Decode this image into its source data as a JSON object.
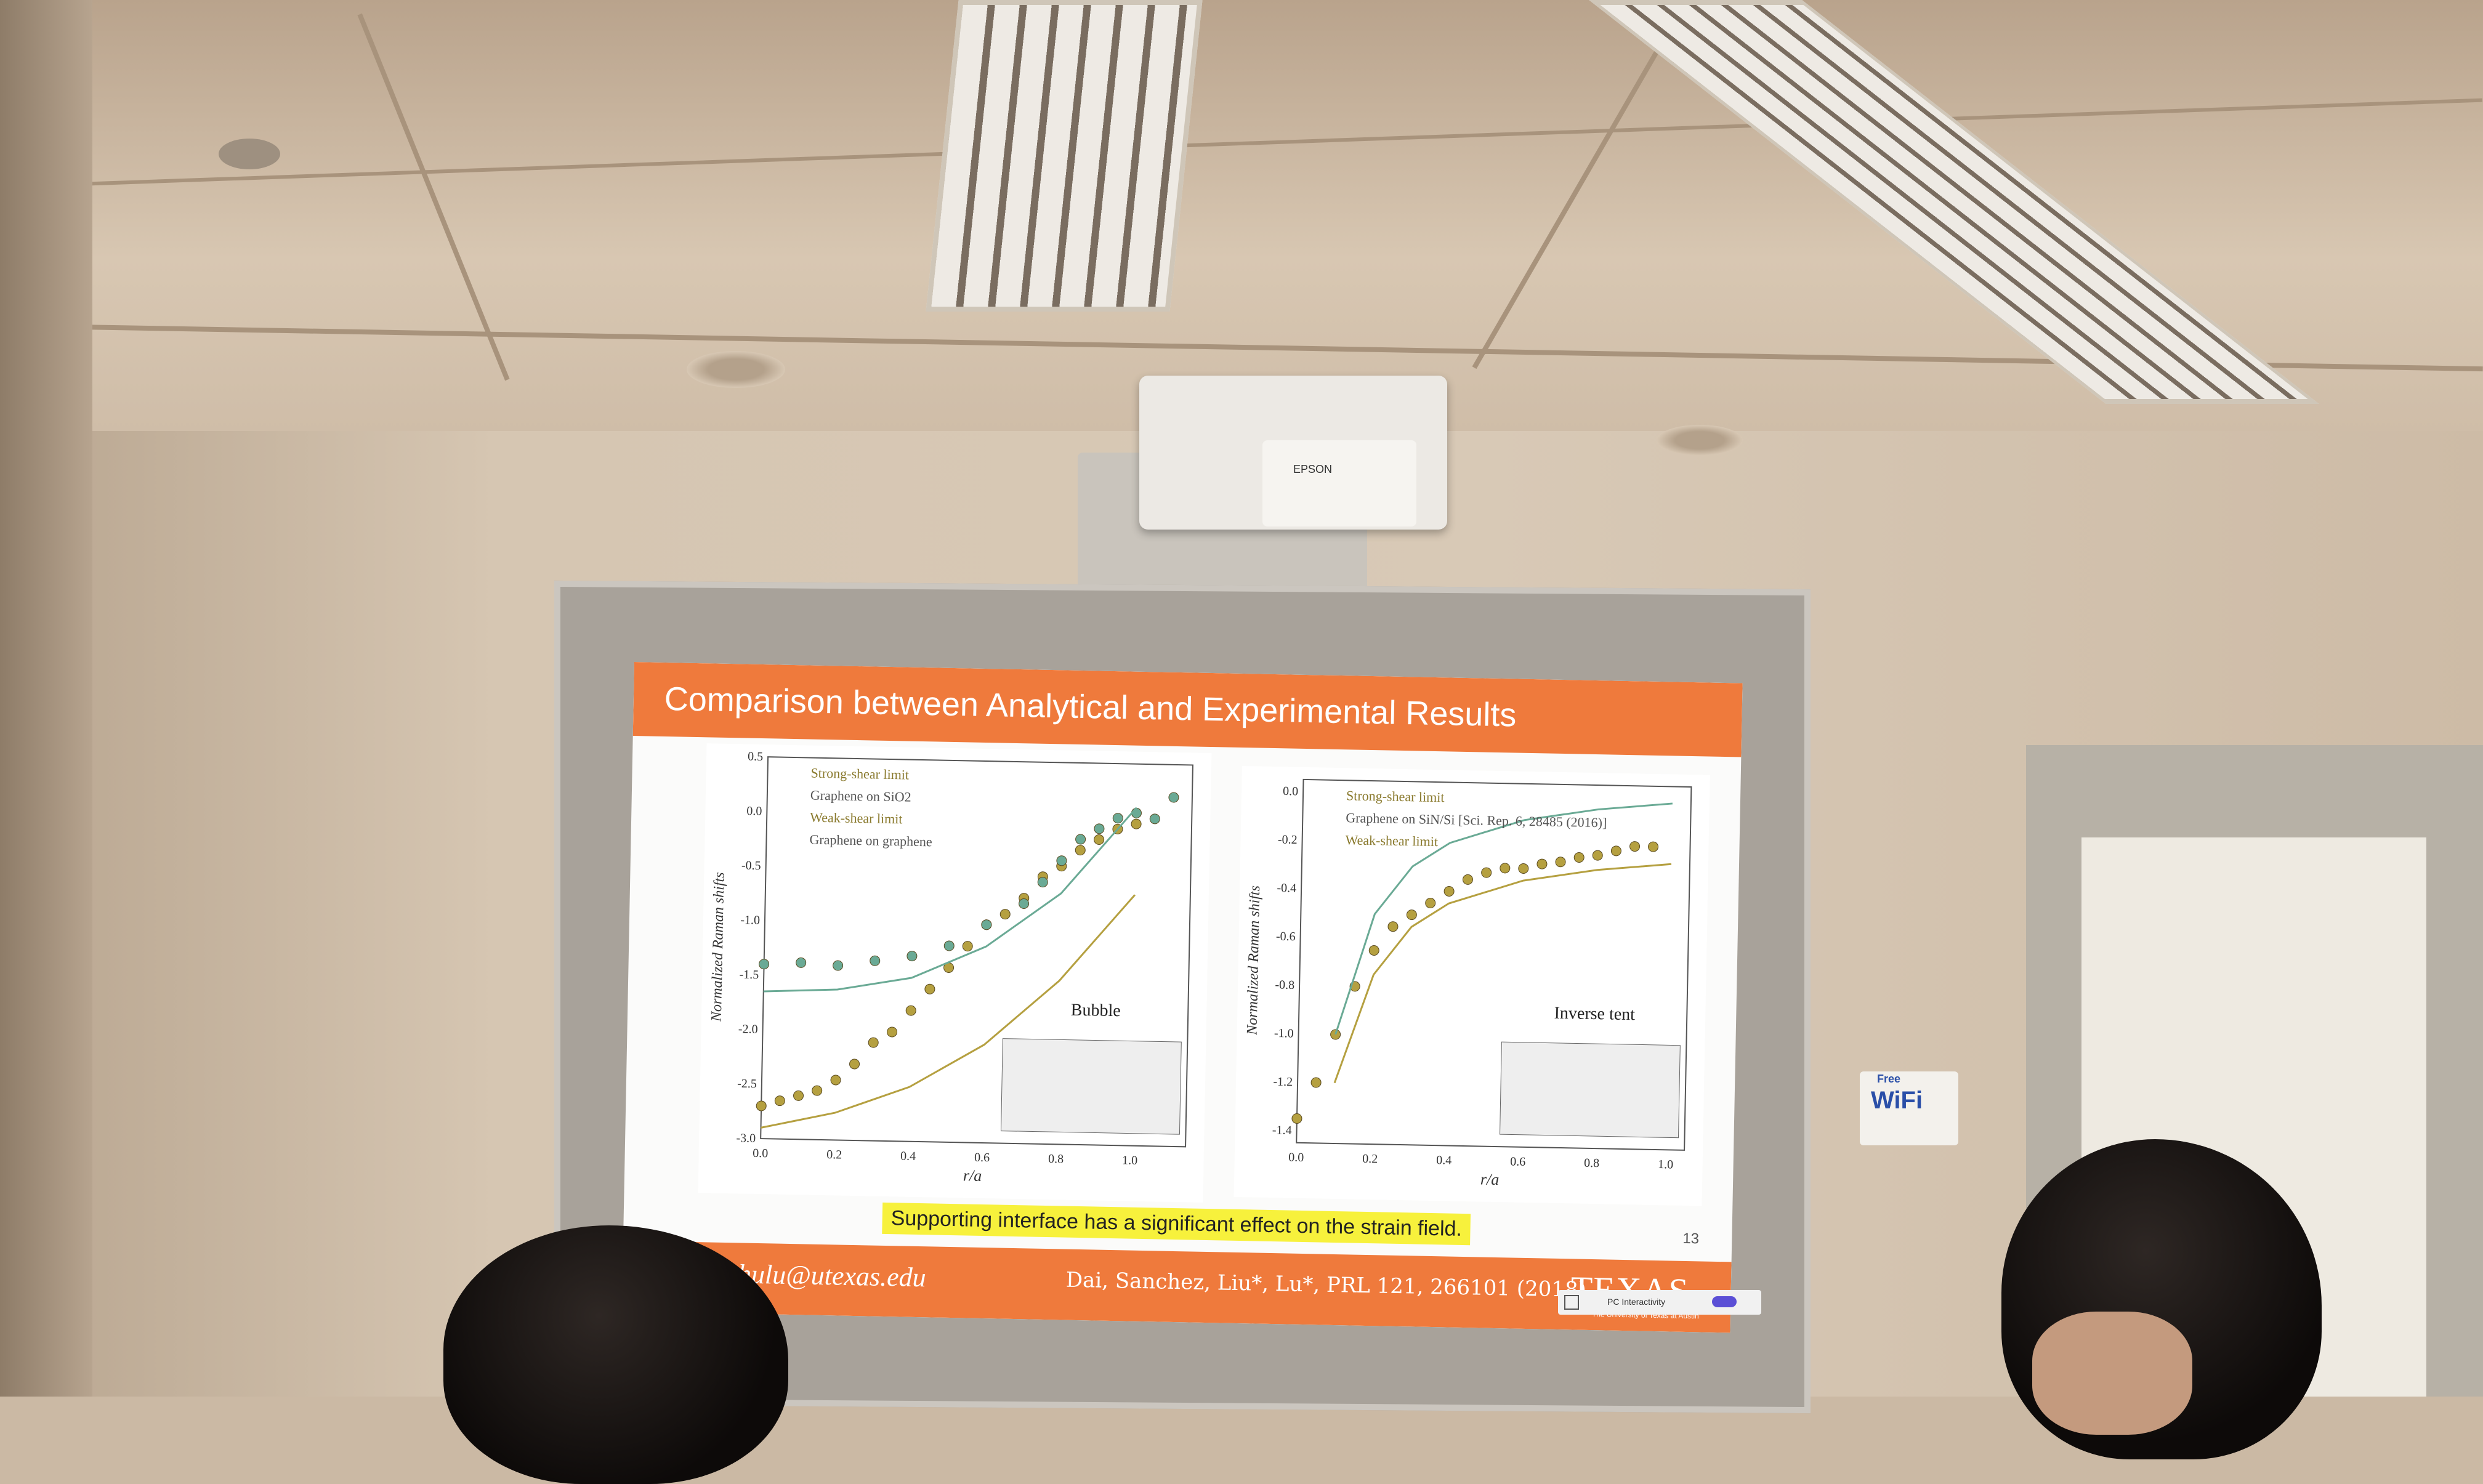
{
  "scene": {
    "projector_brand": "EPSON",
    "wifi_sign": "WiFi",
    "wifi_sign_top": "Free"
  },
  "slide": {
    "title": "Comparison between Analytical and Experimental Results",
    "highlight": "Supporting interface has a significant effect on the strain field.",
    "page_number": "13",
    "email": "shulu@utexas.edu",
    "citation": "Dai, Sanchez, Liu*, Lu*, PRL 121, 266101 (2018).",
    "logo": "TEXAS",
    "logo_sub": "The University of Texas at Austin"
  },
  "toolbar": {
    "label": "PC Interactivity"
  },
  "chart_data": [
    {
      "type": "scatter",
      "xlabel": "r/a",
      "ylabel": "Normalized Raman shifts",
      "xlim": [
        0.0,
        1.15
      ],
      "ylim": [
        -3.0,
        0.5
      ],
      "x_ticks": [
        "0.0",
        "0.2",
        "0.4",
        "0.6",
        "0.8",
        "1.0"
      ],
      "y_ticks": [
        "0.5",
        "0.0",
        "-0.5",
        "-1.0",
        "-1.5",
        "-2.0",
        "-2.5",
        "-3.0"
      ],
      "inset_label": "Bubble",
      "legend": [
        "Strong-shear limit",
        "Graphene on SiO2",
        "Weak-shear limit",
        "Graphene on graphene"
      ],
      "colors": {
        "strong": "#b5a040",
        "weak": "#6aaa95"
      },
      "series": [
        {
          "name": "Graphene on SiO2",
          "x": [
            0.0,
            0.05,
            0.1,
            0.15,
            0.2,
            0.25,
            0.3,
            0.35,
            0.4,
            0.45,
            0.5,
            0.55,
            0.6,
            0.65,
            0.7,
            0.75,
            0.8,
            0.85,
            0.9,
            0.95,
            1.0
          ],
          "y": [
            -2.7,
            -2.65,
            -2.6,
            -2.55,
            -2.45,
            -2.3,
            -2.1,
            -2.0,
            -1.8,
            -1.6,
            -1.4,
            -1.2,
            -1.0,
            -0.9,
            -0.75,
            -0.55,
            -0.45,
            -0.3,
            -0.2,
            -0.1,
            -0.05
          ]
        },
        {
          "name": "Graphene on graphene",
          "x": [
            0.0,
            0.1,
            0.2,
            0.3,
            0.4,
            0.5,
            0.6,
            0.7,
            0.75,
            0.8,
            0.85,
            0.9,
            0.95,
            1.0,
            1.05,
            1.1
          ],
          "y": [
            -1.4,
            -1.38,
            -1.4,
            -1.35,
            -1.3,
            -1.2,
            -1.0,
            -0.8,
            -0.6,
            -0.4,
            -0.2,
            -0.1,
            0.0,
            0.05,
            0.0,
            0.2
          ]
        },
        {
          "name": "Strong-shear limit",
          "x": [
            0.0,
            0.2,
            0.4,
            0.6,
            0.8,
            1.0
          ],
          "y": [
            -2.9,
            -2.75,
            -2.5,
            -2.1,
            -1.5,
            -0.7
          ]
        },
        {
          "name": "Weak-shear limit",
          "x": [
            0.0,
            0.2,
            0.4,
            0.6,
            0.8,
            1.0
          ],
          "y": [
            -1.65,
            -1.62,
            -1.5,
            -1.2,
            -0.7,
            0.1
          ]
        }
      ]
    },
    {
      "type": "scatter",
      "xlabel": "r/a",
      "ylabel": "Normalized Raman shifts",
      "xlim": [
        0.0,
        1.05
      ],
      "ylim": [
        -1.45,
        0.05
      ],
      "x_ticks": [
        "0.0",
        "0.2",
        "0.4",
        "0.6",
        "0.8",
        "1.0"
      ],
      "y_ticks": [
        "0.0",
        "-0.2",
        "-0.4",
        "-0.6",
        "-0.8",
        "-1.0",
        "-1.2",
        "-1.4"
      ],
      "inset_label": "Inverse tent",
      "legend": [
        "Strong-shear limit",
        "Graphene on SiN/Si [Sci. Rep. 6, 28485 (2016)]",
        "Weak-shear limit"
      ],
      "colors": {
        "strong": "#b5a040",
        "weak": "#6aaa95"
      },
      "series": [
        {
          "name": "Graphene on SiN/Si [Sci. Rep. 6, 28485 (2016)]",
          "x": [
            0.0,
            0.05,
            0.1,
            0.15,
            0.2,
            0.25,
            0.3,
            0.35,
            0.4,
            0.45,
            0.5,
            0.55,
            0.6,
            0.65,
            0.7,
            0.75,
            0.8,
            0.85,
            0.9,
            0.95
          ],
          "y": [
            -1.35,
            -1.2,
            -1.0,
            -0.8,
            -0.65,
            -0.55,
            -0.5,
            -0.45,
            -0.4,
            -0.35,
            -0.32,
            -0.3,
            -0.3,
            -0.28,
            -0.27,
            -0.25,
            -0.24,
            -0.22,
            -0.2,
            -0.2
          ]
        },
        {
          "name": "Strong-shear limit",
          "x": [
            0.1,
            0.2,
            0.3,
            0.4,
            0.6,
            0.8,
            1.0
          ],
          "y": [
            -1.2,
            -0.75,
            -0.55,
            -0.45,
            -0.35,
            -0.3,
            -0.27
          ]
        },
        {
          "name": "Weak-shear limit",
          "x": [
            0.1,
            0.2,
            0.3,
            0.4,
            0.6,
            0.8,
            1.0
          ],
          "y": [
            -1.0,
            -0.5,
            -0.3,
            -0.2,
            -0.1,
            -0.05,
            -0.02
          ]
        }
      ]
    }
  ]
}
